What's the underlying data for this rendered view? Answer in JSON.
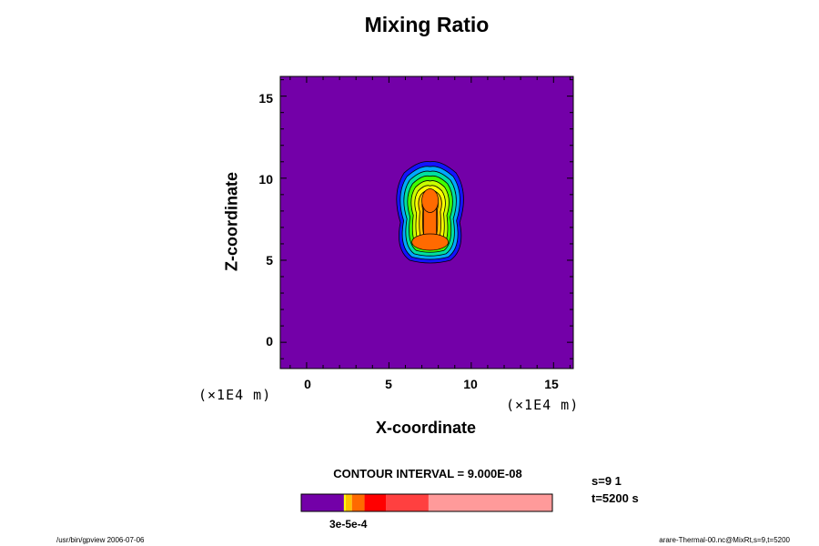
{
  "title": "Mixing Ratio",
  "chart_data": {
    "type": "heatmap",
    "title": "Mixing Ratio",
    "xlabel": "X-coordinate",
    "ylabel": "Z-coordinate",
    "x_unit": "(×1E4 m)",
    "z_unit": "(×1E4 m)",
    "xlim": [
      -1.6,
      16.2
    ],
    "ylim": [
      -1.6,
      16.2
    ],
    "x_ticks": [
      "0",
      "5",
      "10",
      "15"
    ],
    "y_ticks": [
      "0",
      "5",
      "10",
      "15"
    ],
    "background_color": "#7300a8",
    "contour_fills": [
      "#1414ff",
      "#00a8ff",
      "#00e0a0",
      "#40ff00",
      "#c8ff00",
      "#ffff00",
      "#ffc000",
      "#ff6a00"
    ],
    "plume": {
      "center_x": 7.5,
      "cap_center_z": 8.3,
      "base_z": 5.0,
      "top_z": 11.0,
      "min_x": 5.3,
      "max_x": 9.8
    },
    "contour_interval": "CONTOUR INTERVAL = 9.000E-08",
    "colorbar": {
      "segments": [
        {
          "color": "#7300a8",
          "fraction": 0.17
        },
        {
          "color": "#ffff00",
          "fraction": 0.007
        },
        {
          "color": "#ffc000",
          "fraction": 0.025
        },
        {
          "color": "#ff6a00",
          "fraction": 0.05
        },
        {
          "color": "#ff0000",
          "fraction": 0.085
        },
        {
          "color": "#ff4040",
          "fraction": 0.17
        },
        {
          "color": "#ff9a9a",
          "fraction": 0.493
        }
      ],
      "tick_label": "3e-5e-4"
    }
  },
  "info": {
    "s": "s=9 1",
    "t": "t=5200 s"
  },
  "footer": {
    "left": "/usr/bin/gpview 2006-07-06",
    "right": "arare-Thermal-00.nc@MixRt,s=9,t=5200"
  }
}
